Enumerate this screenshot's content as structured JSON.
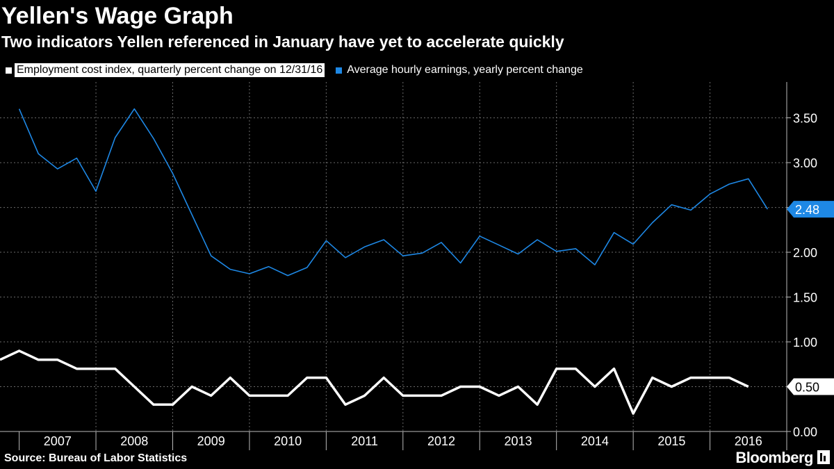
{
  "header": {
    "title": "Yellen's Wage Graph",
    "subtitle": "Two indicators Yellen referenced in January have yet to accelerate quickly"
  },
  "legend": {
    "items": [
      {
        "label": "Employment cost index, quarterly percent change on 12/31/16",
        "color": "#ffffff",
        "style": "inverted"
      },
      {
        "label": "Average hourly earnings, yearly percent change",
        "color": "#1e88e5",
        "style": "plain"
      }
    ]
  },
  "footer": {
    "source": "Source: Bureau of Labor Statistics",
    "brand": "Bloomberg",
    "brand_icon": "bloomberg-terminal-icon"
  },
  "chart_data": {
    "type": "line",
    "x_axis": {
      "tick_labels": [
        "2007",
        "2008",
        "2009",
        "2010",
        "2011",
        "2012",
        "2013",
        "2014",
        "2015",
        "2016"
      ]
    },
    "y_axis": {
      "position": "right",
      "ylim": [
        0,
        3.9
      ],
      "ticks": [
        0,
        0.5,
        1.0,
        1.5,
        2.0,
        2.5,
        3.0,
        3.5
      ],
      "tick_labels": [
        "0.00",
        "0.50",
        "1.00",
        "1.50",
        "2.00",
        "2.50",
        "3.00",
        "3.50"
      ]
    },
    "grid": true,
    "series": [
      {
        "name": "Employment cost index, quarterly percent change on 12/31/16",
        "color": "#ffffff",
        "end_label": "0.50",
        "x": [
          2006.75,
          2007.0,
          2007.25,
          2007.5,
          2007.75,
          2008.0,
          2008.25,
          2008.5,
          2008.75,
          2009.0,
          2009.25,
          2009.5,
          2009.75,
          2010.0,
          2010.25,
          2010.5,
          2010.75,
          2011.0,
          2011.25,
          2011.5,
          2011.75,
          2012.0,
          2012.25,
          2012.5,
          2012.75,
          2013.0,
          2013.25,
          2013.5,
          2013.75,
          2014.0,
          2014.25,
          2014.5,
          2014.75,
          2015.0,
          2015.25,
          2015.5,
          2015.75,
          2016.0,
          2016.25,
          2016.5
        ],
        "values": [
          0.8,
          0.9,
          0.8,
          0.8,
          0.7,
          0.7,
          0.7,
          0.5,
          0.3,
          0.3,
          0.5,
          0.4,
          0.6,
          0.4,
          0.4,
          0.4,
          0.6,
          0.6,
          0.3,
          0.4,
          0.6,
          0.4,
          0.4,
          0.4,
          0.5,
          0.5,
          0.4,
          0.5,
          0.3,
          0.7,
          0.7,
          0.5,
          0.7,
          0.2,
          0.6,
          0.5,
          0.6,
          0.6,
          0.6,
          0.5
        ]
      },
      {
        "name": "Average hourly earnings, yearly percent change",
        "color": "#1e88e5",
        "end_label": "2.48",
        "x": [
          2007.0,
          2007.25,
          2007.5,
          2007.75,
          2008.0,
          2008.25,
          2008.5,
          2008.75,
          2009.0,
          2009.25,
          2009.5,
          2009.75,
          2010.0,
          2010.25,
          2010.5,
          2010.75,
          2011.0,
          2011.25,
          2011.5,
          2011.75,
          2012.0,
          2012.25,
          2012.5,
          2012.75,
          2013.0,
          2013.25,
          2013.5,
          2013.75,
          2014.0,
          2014.25,
          2014.5,
          2014.75,
          2015.0,
          2015.25,
          2015.5,
          2015.75,
          2016.0,
          2016.25,
          2016.5,
          2016.75
        ],
        "values": [
          3.6,
          3.1,
          2.93,
          3.05,
          2.68,
          3.28,
          3.6,
          3.27,
          2.88,
          2.42,
          1.96,
          1.81,
          1.76,
          1.84,
          1.74,
          1.83,
          2.13,
          1.94,
          2.06,
          2.14,
          1.96,
          1.99,
          2.11,
          1.88,
          2.18,
          2.08,
          1.98,
          2.14,
          2.01,
          2.04,
          1.86,
          2.22,
          2.09,
          2.33,
          2.53,
          2.47,
          2.65,
          2.76,
          2.82,
          2.48
        ]
      }
    ]
  }
}
